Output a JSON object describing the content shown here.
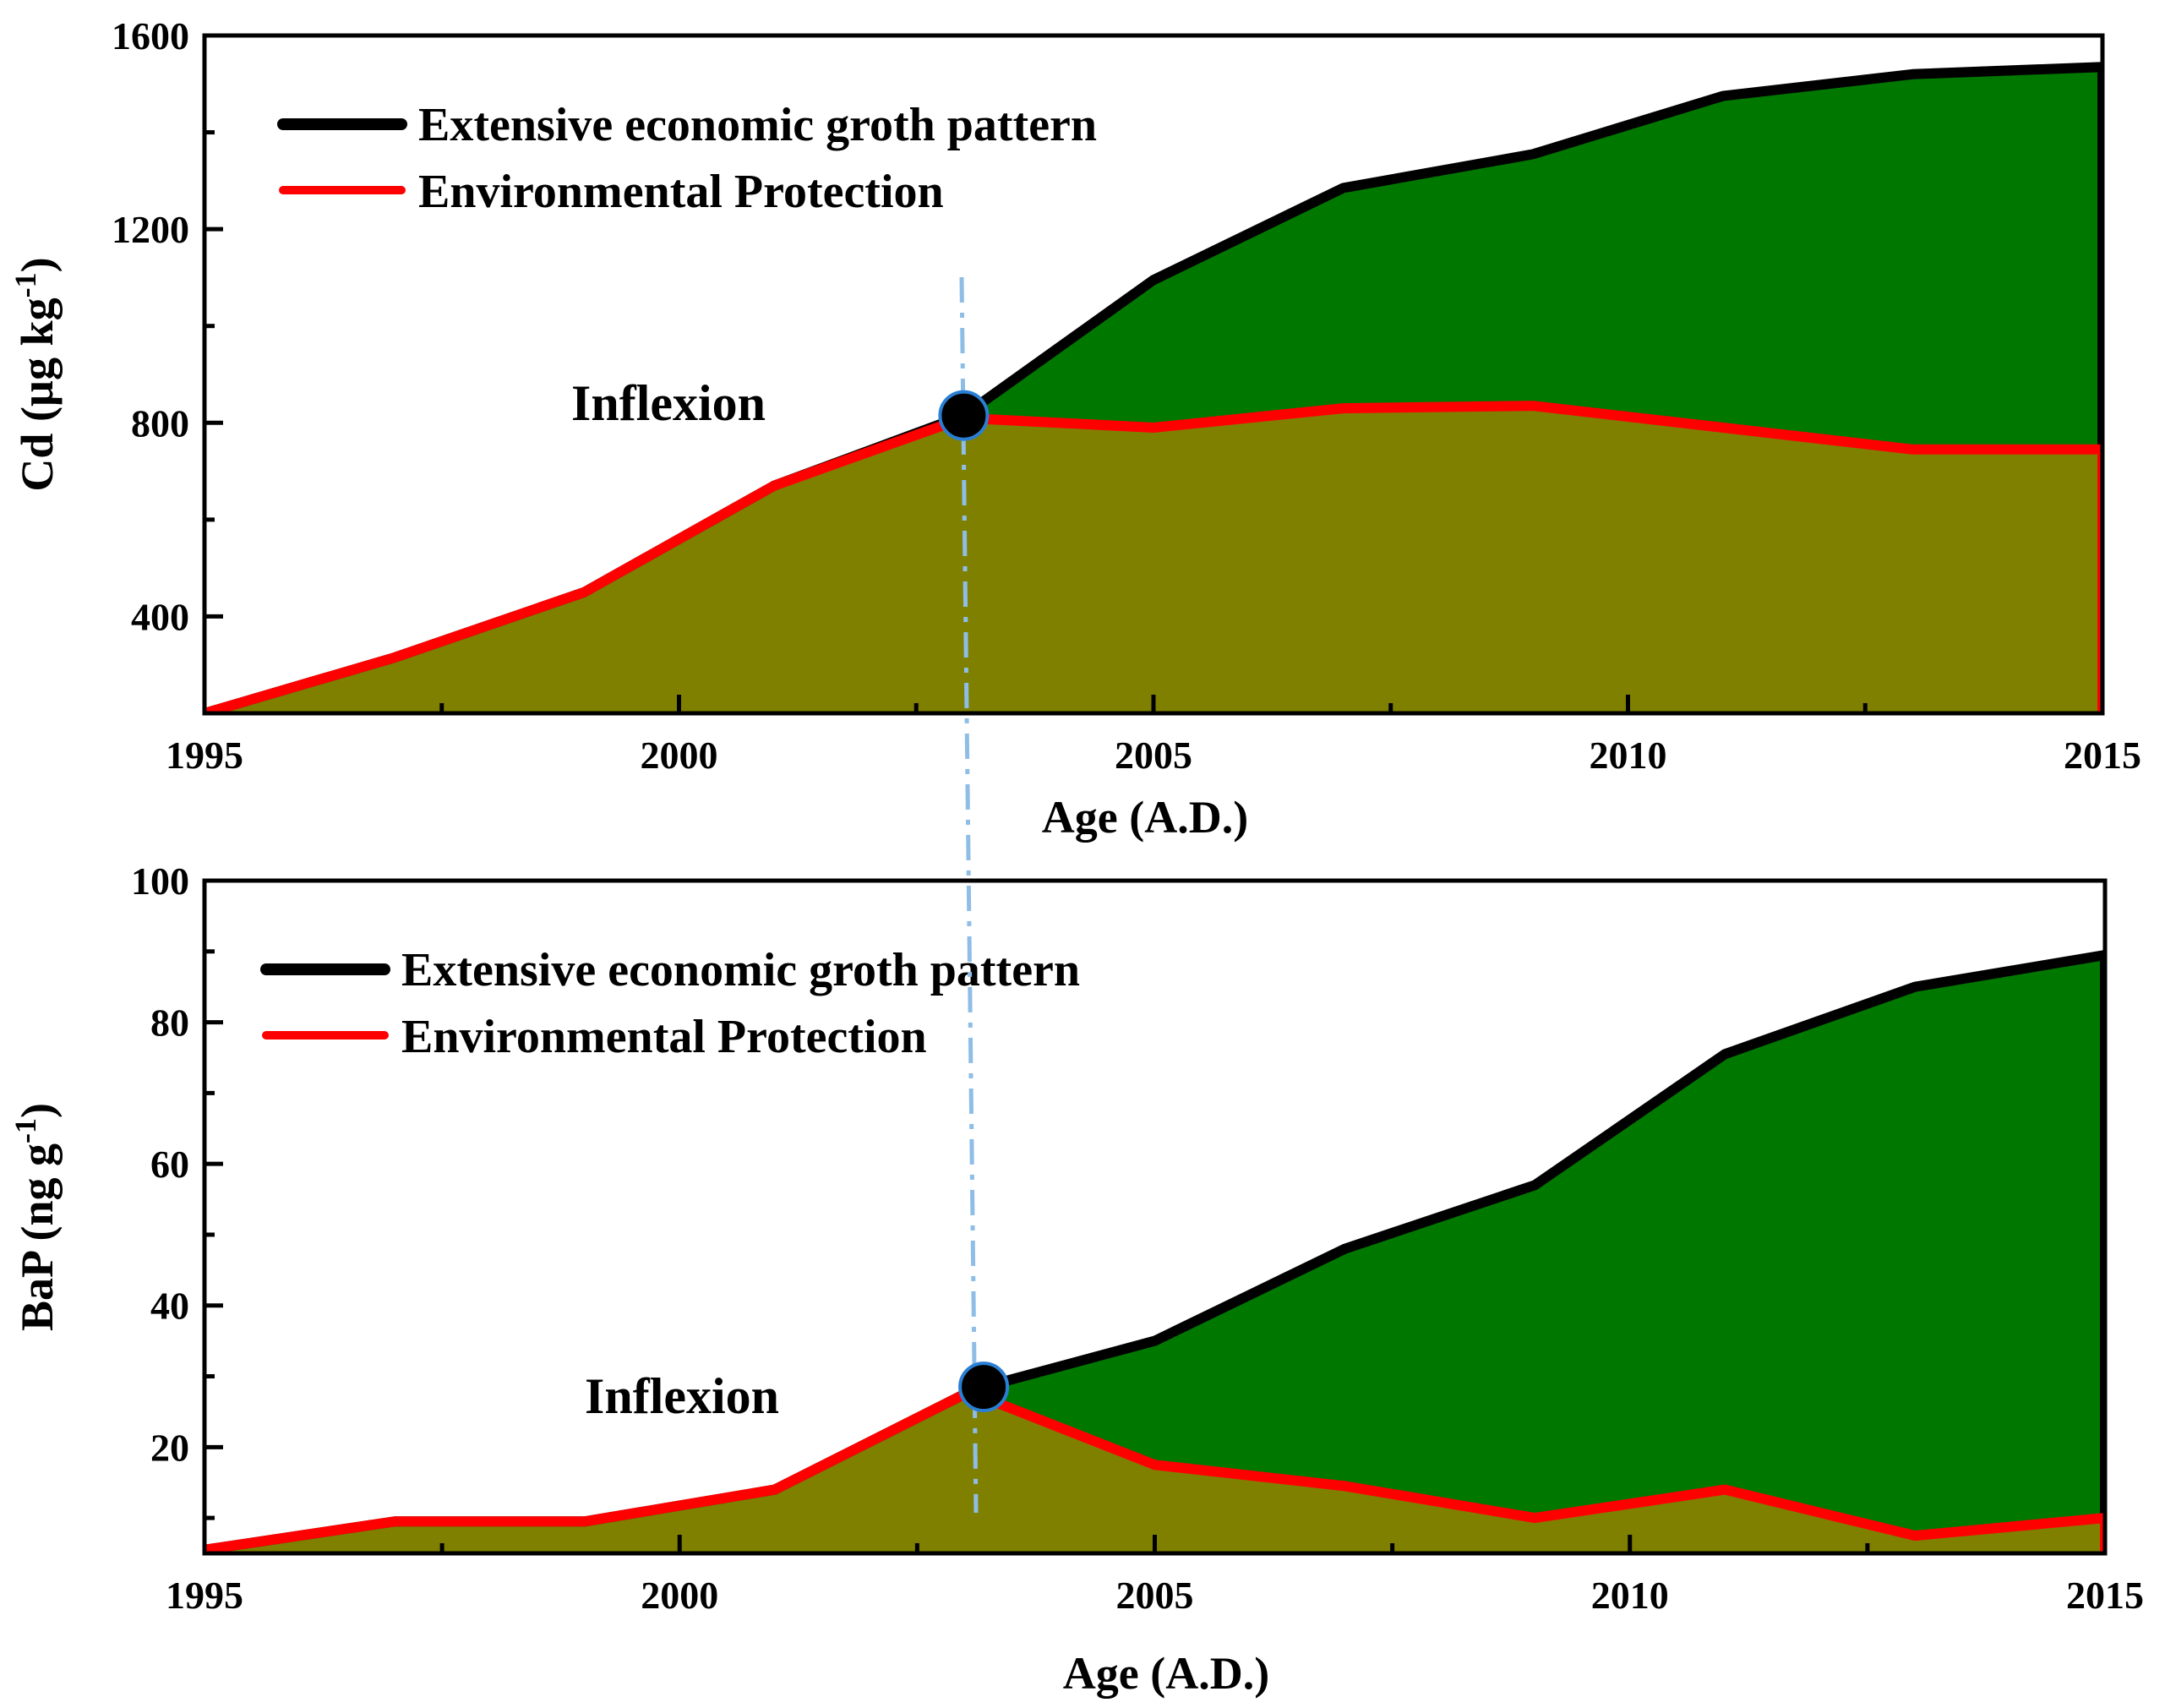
{
  "colors": {
    "growth_fill": "#007800",
    "protection_fill": "#808000",
    "growth_line": "#000000",
    "protection_line": "#ff0000",
    "inflexion_guide": "#8ebde6",
    "marker_fill": "#000000",
    "marker_stroke": "#2a7fd4"
  },
  "chart_data": [
    {
      "type": "area",
      "panel": "top",
      "xlabel": "Age (A.D.)",
      "ylabel": "Cd (µg kg",
      "ylabel_exponent": "-1",
      "ylabel_close": ")",
      "xlim": [
        1995,
        2015
      ],
      "ylim": [
        200,
        1600
      ],
      "x_ticks": [
        1995,
        2000,
        2005,
        2010,
        2015
      ],
      "x_tick_labels": [
        "1995",
        "2000",
        "2005",
        "2010",
        "2015"
      ],
      "y_ticks": [
        400,
        800,
        1200,
        1600
      ],
      "y_tick_labels": [
        "400",
        "800",
        "1200",
        "1600"
      ],
      "series": [
        {
          "name": "Extensive economic groth pattern",
          "x": [
            1995,
            1997,
            1999,
            2001,
            2003,
            2005,
            2007,
            2009,
            2011,
            2013,
            2015
          ],
          "values": [
            200,
            315,
            450,
            670,
            815,
            1095,
            1285,
            1355,
            1475,
            1520,
            1535
          ]
        },
        {
          "name": "Environmental Protection",
          "x": [
            1995,
            1997,
            1999,
            2001,
            2003,
            2005,
            2007,
            2009,
            2011,
            2013,
            2015
          ],
          "values": [
            200,
            315,
            450,
            670,
            810,
            790,
            830,
            835,
            790,
            745,
            745
          ]
        }
      ],
      "annotations": [
        {
          "text": "Inflexion",
          "x": 2003.0,
          "y": 815
        }
      ],
      "legend_position": "top-left"
    },
    {
      "type": "area",
      "panel": "bottom",
      "xlabel": "Age (A.D.)",
      "ylabel": "BaP (ng g",
      "ylabel_exponent": "-1",
      "ylabel_close": ")",
      "xlim": [
        1995,
        2015
      ],
      "ylim": [
        5,
        100
      ],
      "x_ticks": [
        1995,
        2000,
        2005,
        2010,
        2015
      ],
      "x_tick_labels": [
        "1995",
        "2000",
        "2005",
        "2010",
        "2015"
      ],
      "y_ticks": [
        20,
        40,
        60,
        80,
        100
      ],
      "y_tick_labels": [
        "20",
        "40",
        "60",
        "80",
        "100"
      ],
      "series": [
        {
          "name": "Extensive economic groth pattern",
          "x": [
            1995,
            1997,
            1999,
            2001,
            2003,
            2003.2,
            2005,
            2007,
            2009,
            2011,
            2013,
            2015
          ],
          "values": [
            5.5,
            9.5,
            9.5,
            14,
            27.5,
            28.5,
            35,
            48,
            57,
            75.5,
            85,
            89.5
          ]
        },
        {
          "name": "Environmental Protection",
          "x": [
            1995,
            1997,
            1999,
            2001,
            2003,
            2003.2,
            2005,
            2007,
            2009,
            2011,
            2013,
            2015
          ],
          "values": [
            5.5,
            9.5,
            9.5,
            14,
            27.5,
            27,
            17.5,
            14.5,
            10,
            14,
            7.5,
            10
          ]
        }
      ],
      "annotations": [
        {
          "text": "Inflexion",
          "x": 2003.2,
          "y": 28.5
        }
      ],
      "legend_position": "top-left"
    }
  ]
}
